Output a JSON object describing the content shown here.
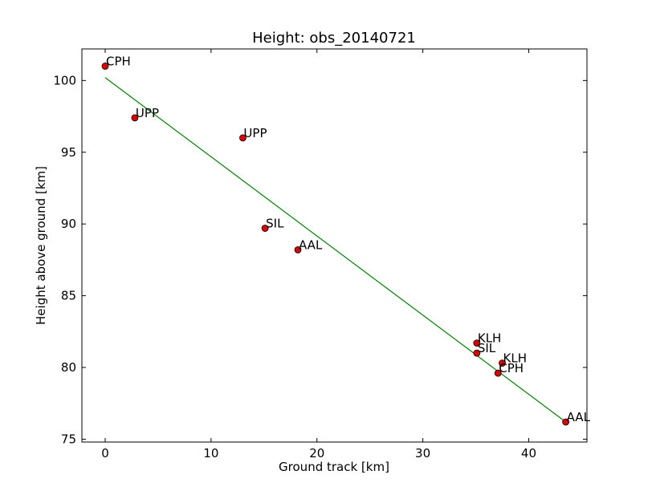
{
  "chart_data": {
    "type": "scatter",
    "title": "Height: obs_20140721",
    "xlabel": "Ground track [km]",
    "ylabel": "Height above ground [km]",
    "xlim": [
      -2.2,
      45.5
    ],
    "ylim": [
      74.8,
      102.2
    ],
    "xticks": [
      0,
      10,
      20,
      30,
      40
    ],
    "yticks": [
      75,
      80,
      85,
      90,
      95,
      100
    ],
    "xtick_labels": [
      "0",
      "10",
      "20",
      "30",
      "40"
    ],
    "ytick_labels": [
      "75",
      "80",
      "85",
      "90",
      "95",
      "100"
    ],
    "grid": false,
    "point_color": "#dd0000",
    "line_color": "#008000",
    "points": [
      {
        "label": "CPH",
        "x": 0.0,
        "y": 101.0
      },
      {
        "label": "UPP",
        "x": 2.8,
        "y": 97.4
      },
      {
        "label": "UPP",
        "x": 13.0,
        "y": 96.0
      },
      {
        "label": "SIL",
        "x": 15.1,
        "y": 89.7
      },
      {
        "label": "AAL",
        "x": 18.2,
        "y": 88.2
      },
      {
        "label": "KLH",
        "x": 35.1,
        "y": 81.7
      },
      {
        "label": "SIL",
        "x": 35.1,
        "y": 81.0
      },
      {
        "label": "KLH",
        "x": 37.5,
        "y": 80.3
      },
      {
        "label": "CPH",
        "x": 37.1,
        "y": 79.6
      },
      {
        "label": "AAL",
        "x": 43.5,
        "y": 76.2
      }
    ],
    "fit_line": {
      "x": [
        0.0,
        43.5
      ],
      "y": [
        100.2,
        76.2
      ]
    }
  }
}
